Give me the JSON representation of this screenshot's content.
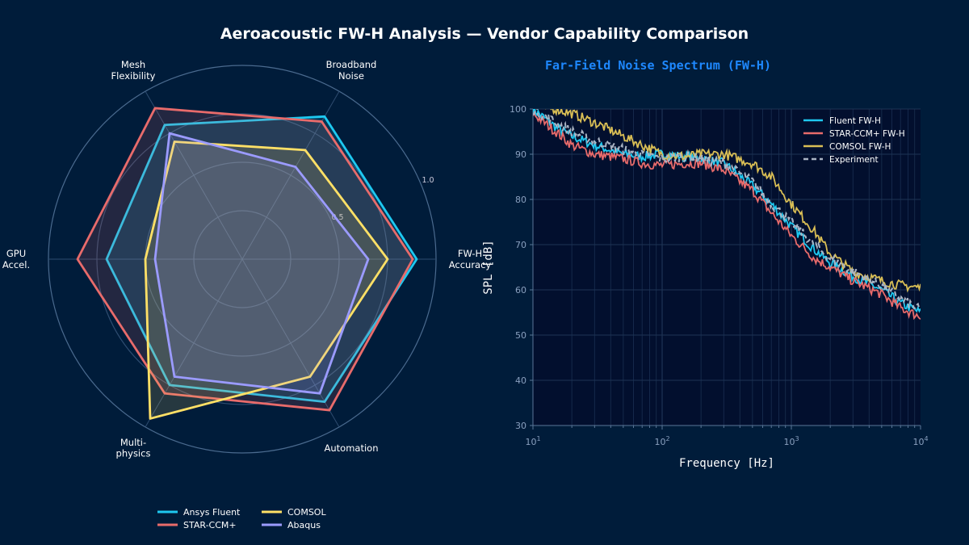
{
  "title": "Aeroacoustic FW-H Analysis  —  Vendor Capability Comparison",
  "chart_data": [
    {
      "type": "radar",
      "axes": [
        "FW-H\nAccuracy",
        "Broadband\nNoise",
        "Mesh\nFlexibility",
        "GPU\nAccel.",
        "Multi-\nphysics",
        "Automation"
      ],
      "rlim": [
        0,
        1
      ],
      "r_tick_labels": [
        "0.5",
        "1.0"
      ],
      "legend_position": "bottom",
      "series": [
        {
          "name": "Ansys Fluent",
          "color": "#1ec8f0",
          "values": [
            0.9,
            0.85,
            0.8,
            0.7,
            0.75,
            0.85
          ]
        },
        {
          "name": "STAR-CCM+",
          "color": "#e86b6b",
          "values": [
            0.88,
            0.82,
            0.9,
            0.85,
            0.8,
            0.9
          ]
        },
        {
          "name": "COMSOL",
          "color": "#ffe066",
          "values": [
            0.75,
            0.65,
            0.7,
            0.5,
            0.95,
            0.7
          ]
        },
        {
          "name": "Abaqus",
          "color": "#9b9bff",
          "values": [
            0.65,
            0.55,
            0.75,
            0.45,
            0.7,
            0.8
          ]
        }
      ]
    },
    {
      "type": "line",
      "title": "Far-Field Noise Spectrum (FW-H)",
      "xlabel": "Frequency [Hz]",
      "ylabel": "SPL [dB]",
      "xscale": "log",
      "xlim": [
        10,
        10000
      ],
      "ylim": [
        30,
        100
      ],
      "xticks": [
        "10^1",
        "10^2",
        "10^3",
        "10^4"
      ],
      "yticks": [
        30,
        40,
        50,
        60,
        70,
        80,
        90,
        100
      ],
      "grid": true,
      "legend_position": "top-right",
      "x": [
        10,
        15,
        20,
        30,
        50,
        70,
        100,
        150,
        200,
        300,
        500,
        700,
        1000,
        1500,
        2000,
        3000,
        5000,
        7000,
        10000
      ],
      "series": [
        {
          "name": "Fluent FW-H",
          "color": "#1ec8f0",
          "style": "solid",
          "values": [
            100,
            96,
            94,
            92,
            90,
            89.5,
            90,
            89.5,
            89,
            88,
            83,
            79,
            74,
            69,
            66,
            63,
            60,
            57,
            55
          ]
        },
        {
          "name": "STAR-CCM+ FW-H",
          "color": "#e86b6b",
          "style": "solid",
          "values": [
            99,
            95,
            92,
            90,
            89,
            88,
            87.5,
            88,
            88,
            86.5,
            82,
            77,
            72,
            67,
            65,
            62,
            59,
            56,
            54
          ]
        },
        {
          "name": "COMSOL FW-H",
          "color": "#d9be55",
          "style": "solid",
          "values": [
            101,
            100,
            99,
            97,
            94,
            92,
            90,
            89.5,
            90,
            90,
            88,
            85,
            79,
            73,
            68,
            64,
            62,
            61,
            60.5
          ]
        },
        {
          "name": "Experiment",
          "color": "#aab4c4",
          "style": "dashed",
          "values": [
            100,
            97,
            95,
            93,
            91,
            90,
            89,
            89.5,
            89,
            88,
            84,
            79,
            75,
            70,
            67,
            64,
            61,
            58,
            55.5
          ]
        }
      ]
    }
  ]
}
